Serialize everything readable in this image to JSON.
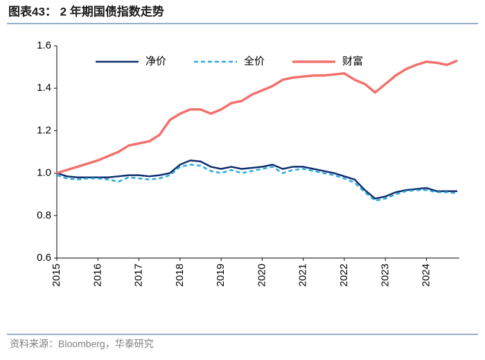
{
  "chart_data": {
    "type": "line",
    "title": "图表43： 2 年期国债指数走势",
    "source": "资料来源：Bloomberg，华泰研究",
    "x": [
      2015,
      2015.25,
      2015.5,
      2015.75,
      2016,
      2016.25,
      2016.5,
      2016.75,
      2017,
      2017.25,
      2017.5,
      2017.75,
      2018,
      2018.25,
      2018.5,
      2018.75,
      2019,
      2019.25,
      2019.5,
      2019.75,
      2020,
      2020.25,
      2020.5,
      2020.75,
      2021,
      2021.25,
      2021.5,
      2021.75,
      2022,
      2022.25,
      2022.5,
      2022.75,
      2023,
      2023.25,
      2023.5,
      2023.75,
      2024,
      2024.25,
      2024.5,
      2024.75
    ],
    "series": [
      {
        "name": "净价",
        "color": "#0d2d6c",
        "dash": false,
        "values": [
          1.0,
          0.985,
          0.98,
          0.98,
          0.98,
          0.98,
          0.985,
          0.99,
          0.99,
          0.985,
          0.99,
          1.0,
          1.04,
          1.06,
          1.055,
          1.03,
          1.02,
          1.03,
          1.02,
          1.025,
          1.03,
          1.04,
          1.02,
          1.03,
          1.03,
          1.02,
          1.01,
          1.0,
          0.985,
          0.97,
          0.92,
          0.88,
          0.89,
          0.91,
          0.92,
          0.925,
          0.93,
          0.915,
          0.915,
          0.915
        ]
      },
      {
        "name": "全价",
        "color": "#29a8e0",
        "dash": true,
        "values": [
          0.99,
          0.975,
          0.97,
          0.975,
          0.975,
          0.97,
          0.96,
          0.98,
          0.975,
          0.97,
          0.975,
          0.99,
          1.03,
          1.04,
          1.035,
          1.01,
          1.0,
          1.015,
          1.0,
          1.01,
          1.02,
          1.03,
          1.0,
          1.015,
          1.02,
          1.01,
          1.0,
          0.99,
          0.975,
          0.955,
          0.91,
          0.87,
          0.88,
          0.9,
          0.915,
          0.92,
          0.92,
          0.91,
          0.91,
          0.905
        ]
      },
      {
        "name": "财富",
        "color": "#f2716c",
        "dash": false,
        "values": [
          1.0,
          1.015,
          1.03,
          1.045,
          1.06,
          1.08,
          1.1,
          1.13,
          1.14,
          1.15,
          1.18,
          1.25,
          1.28,
          1.3,
          1.3,
          1.28,
          1.3,
          1.33,
          1.34,
          1.37,
          1.39,
          1.41,
          1.44,
          1.45,
          1.455,
          1.46,
          1.46,
          1.465,
          1.47,
          1.44,
          1.42,
          1.38,
          1.42,
          1.46,
          1.49,
          1.51,
          1.525,
          1.52,
          1.51,
          1.53
        ]
      }
    ],
    "xlim": [
      2015,
      2024.8
    ],
    "xticks": [
      2015,
      2016,
      2017,
      2018,
      2019,
      2020,
      2021,
      2022,
      2023,
      2024
    ],
    "ylim": [
      0.6,
      1.6
    ],
    "yticks": [
      0.6,
      0.8,
      {
        "value": 1,
        "label": "1.0"
      },
      1.2,
      1.4,
      1.6
    ],
    "legend": "top"
  }
}
